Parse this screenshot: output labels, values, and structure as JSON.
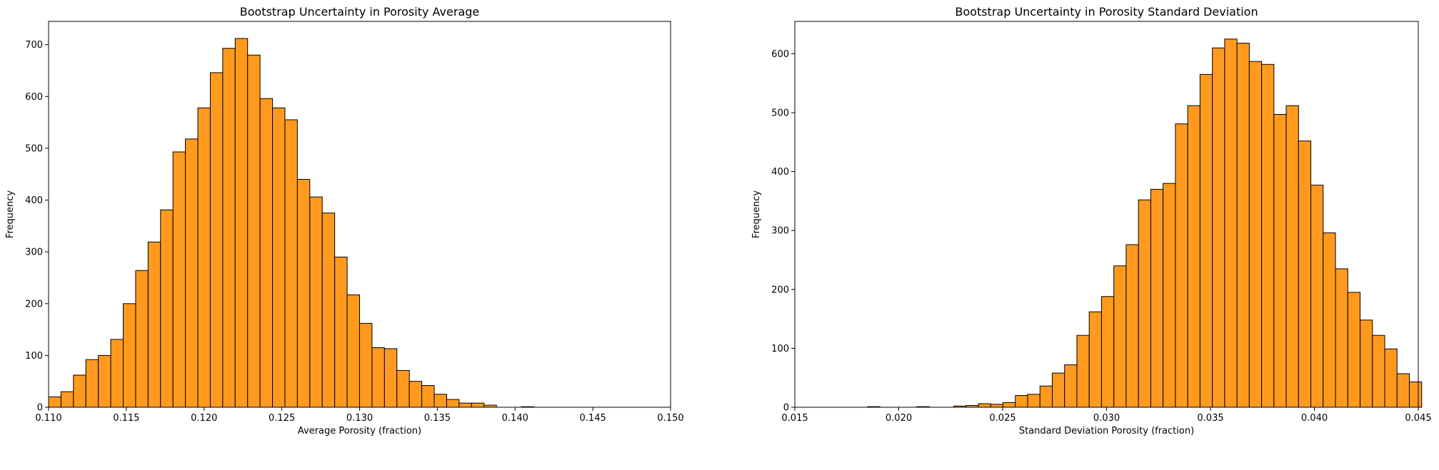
{
  "chart_data": [
    {
      "type": "bar",
      "title": "Bootstrap Uncertainty in Porosity Average",
      "xlabel": "Average Porosity (fraction)",
      "ylabel": "Frequency",
      "xlim": [
        0.11,
        0.15
      ],
      "ylim": [
        0,
        745
      ],
      "xticks": [
        0.11,
        0.115,
        0.12,
        0.125,
        0.13,
        0.135,
        0.14,
        0.145,
        0.15
      ],
      "xtick_labels": [
        "0.110",
        "0.115",
        "0.120",
        "0.125",
        "0.130",
        "0.135",
        "0.140",
        "0.145",
        "0.150"
      ],
      "yticks": [
        0,
        100,
        200,
        300,
        400,
        500,
        600,
        700
      ],
      "ytick_labels": [
        "0",
        "100",
        "200",
        "300",
        "400",
        "500",
        "600",
        "700"
      ],
      "bin_start": 0.11,
      "bin_width": 0.0008,
      "values": [
        20,
        30,
        62,
        92,
        100,
        131,
        200,
        264,
        319,
        381,
        493,
        518,
        578,
        646,
        693,
        712,
        680,
        596,
        578,
        555,
        440,
        406,
        375,
        290,
        217,
        162,
        115,
        113,
        71,
        50,
        42,
        25,
        15,
        8,
        8,
        4,
        0,
        0,
        1
      ],
      "bar_color": "#ff9a1f",
      "edge_color": "#000000",
      "grid": false
    },
    {
      "type": "bar",
      "title": "Bootstrap Uncertainty in Porosity Standard Deviation",
      "xlabel": "Standard Deviation Porosity (fraction)",
      "ylabel": "Frequency",
      "xlim": [
        0.015,
        0.045
      ],
      "ylim": [
        0,
        655
      ],
      "xticks": [
        0.015,
        0.02,
        0.025,
        0.03,
        0.035,
        0.04,
        0.045
      ],
      "xtick_labels": [
        "0.015",
        "0.020",
        "0.025",
        "0.030",
        "0.035",
        "0.040",
        "0.045"
      ],
      "yticks": [
        0,
        100,
        200,
        300,
        400,
        500,
        600
      ],
      "ytick_labels": [
        "0",
        "100",
        "200",
        "300",
        "400",
        "500",
        "600"
      ],
      "bin_start": 0.0185,
      "bin_width": 0.0005925,
      "values": [
        1,
        0,
        0,
        0,
        1,
        0,
        0,
        2,
        3,
        6,
        5,
        8,
        20,
        22,
        36,
        58,
        72,
        122,
        162,
        188,
        240,
        276,
        352,
        370,
        380,
        481,
        512,
        565,
        610,
        625,
        618,
        587,
        582,
        497,
        512,
        452,
        377,
        296,
        235,
        195,
        148,
        122,
        99,
        57,
        43
      ],
      "bar_color": "#ff9a1f",
      "edge_color": "#000000",
      "grid": false
    }
  ]
}
